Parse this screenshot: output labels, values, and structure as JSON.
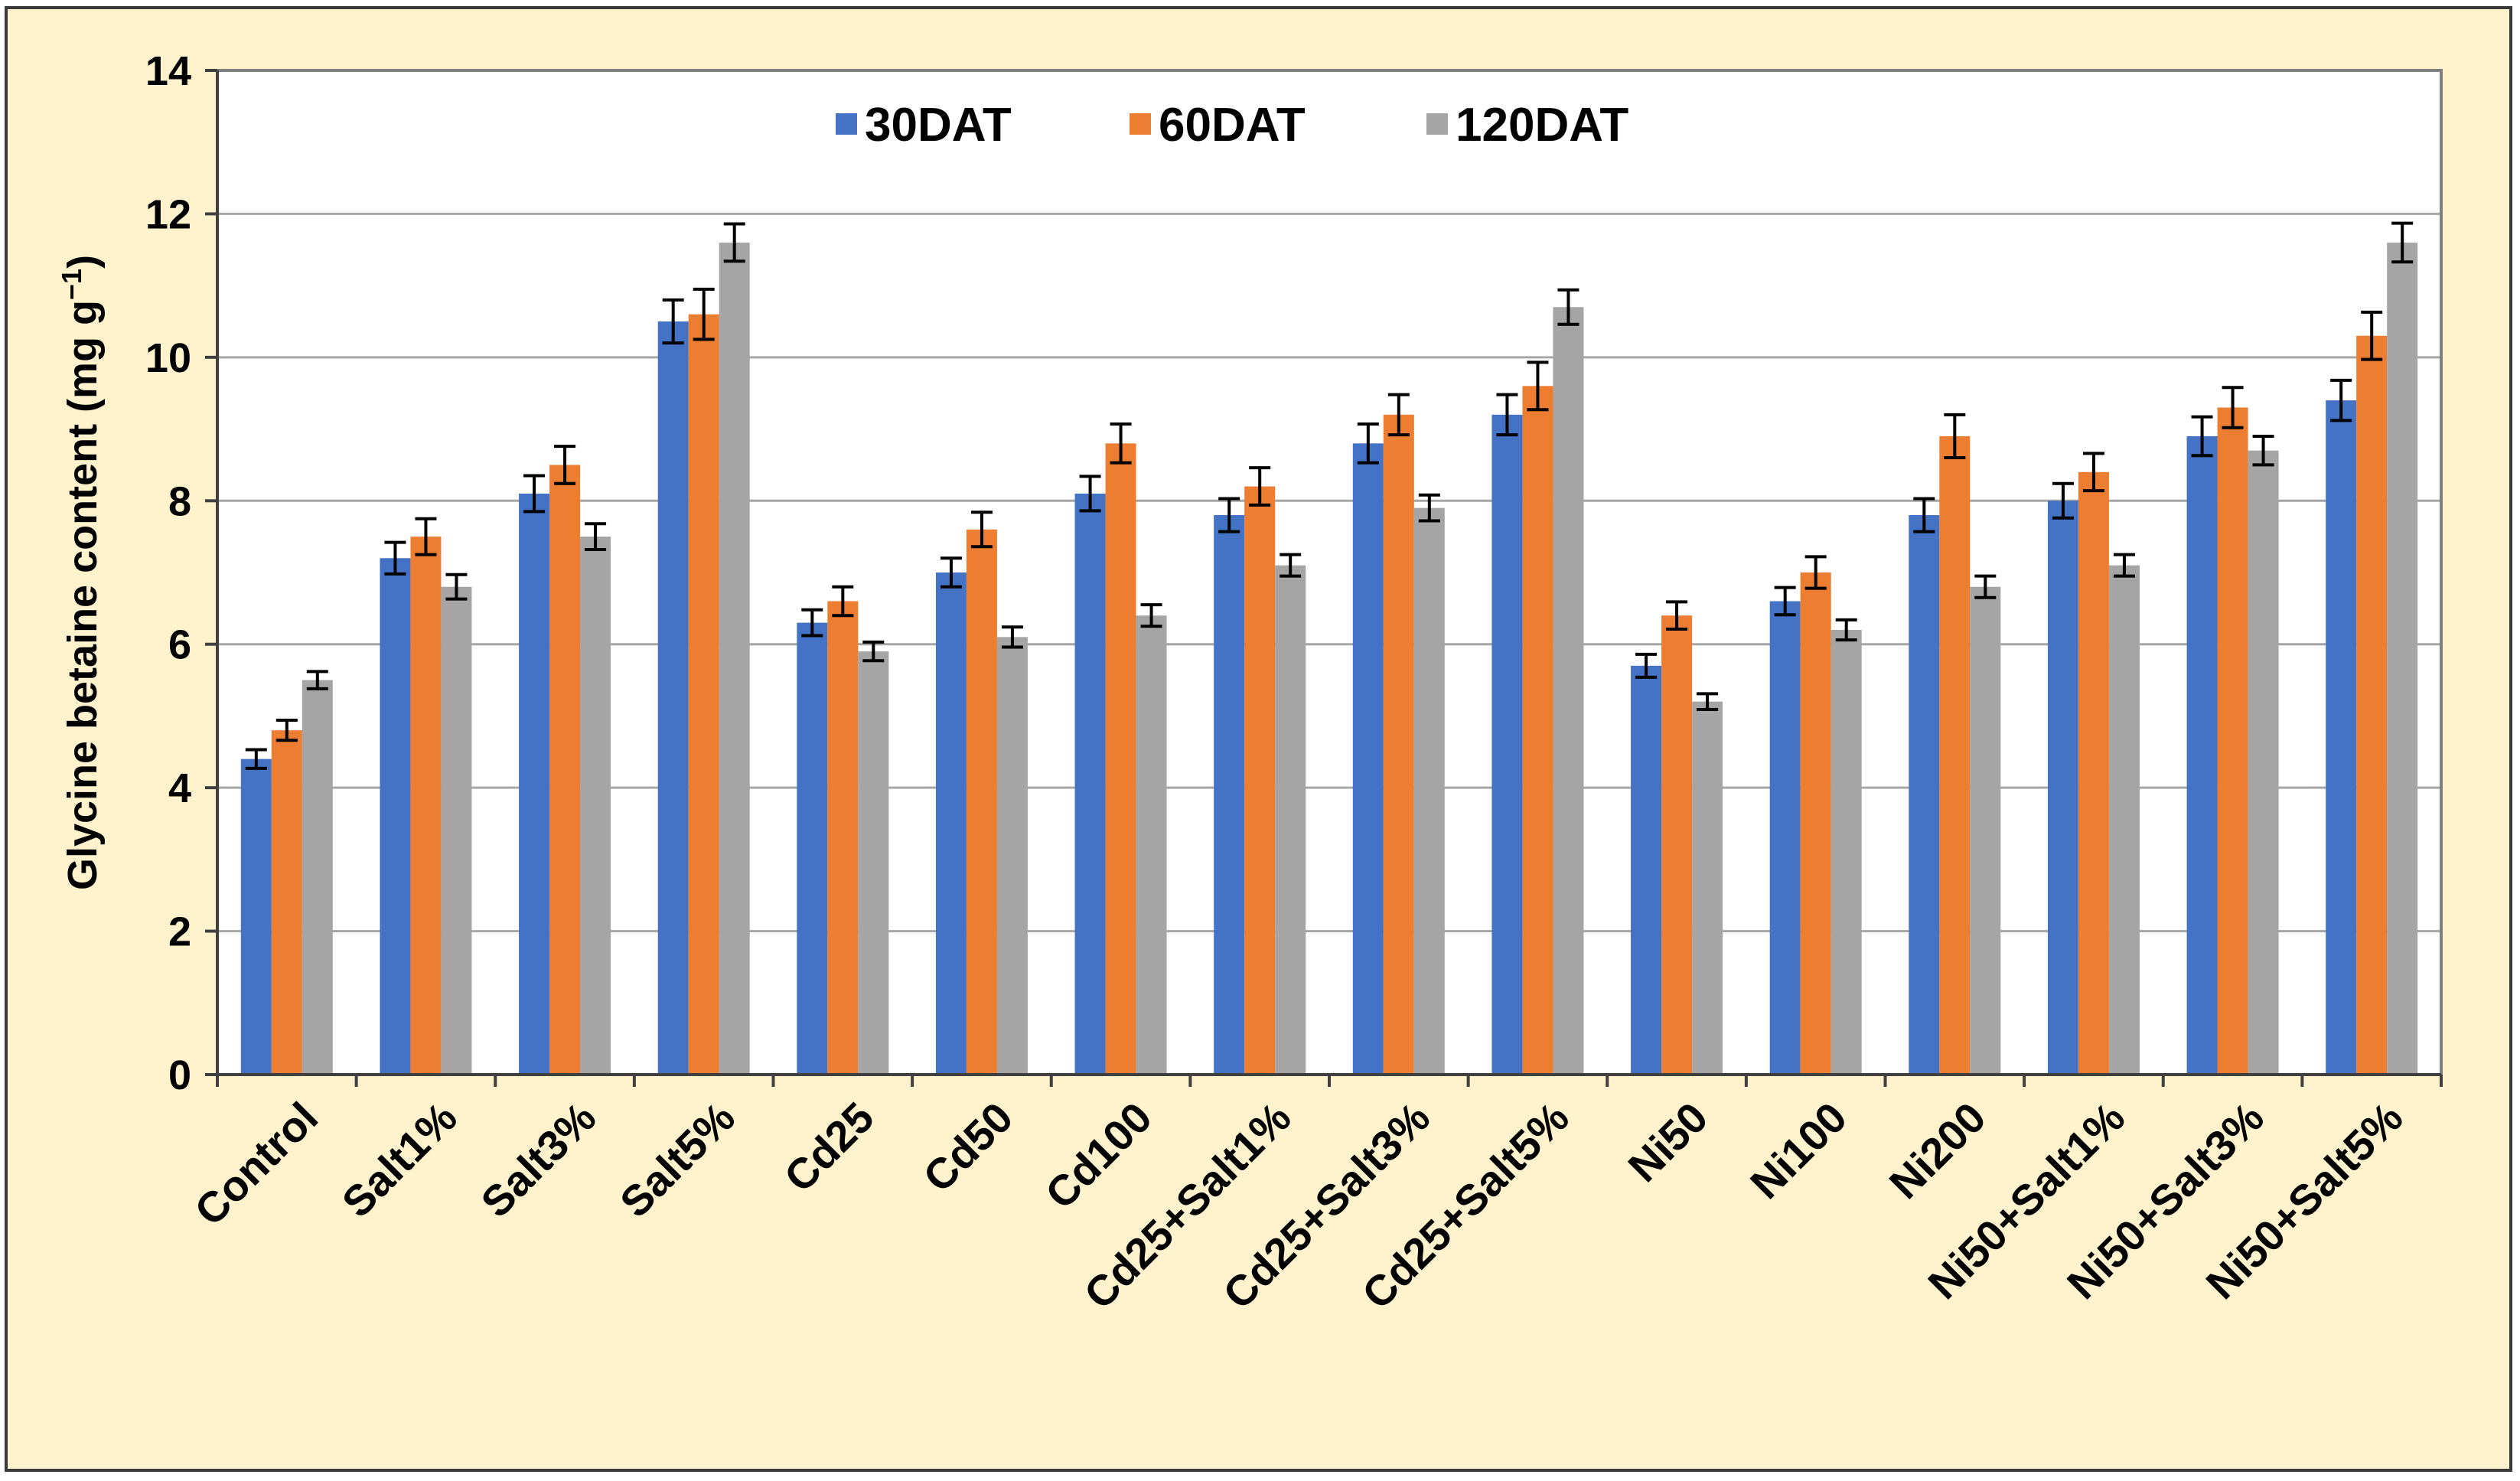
{
  "chart_data": {
    "type": "bar",
    "title": "",
    "xlabel": "",
    "ylabel": "Glycine betaine content (mg g",
    "ylabel_sup": "−1",
    "ylabel_close": ")",
    "ylim": [
      0,
      14
    ],
    "yticks": [
      "0",
      "2",
      "4",
      "6",
      "8",
      "10",
      "12",
      "14"
    ],
    "grid": true,
    "legend_position": "top-center",
    "categories": [
      "Control",
      "Salt1%",
      "Salt3%",
      "Salt5%",
      "Cd25",
      "Cd50",
      "Cd100",
      "Cd25+Salt1%",
      "Cd25+Salt3%",
      "Cd25+Salt5%",
      "Ni50",
      "Ni100",
      "Ni200",
      "Ni50+Salt1%",
      "Ni50+Salt3%",
      "Ni50+Salt5%"
    ],
    "series": [
      {
        "name": "30DAT",
        "color": "#4472c4",
        "values": [
          4.4,
          7.2,
          8.1,
          10.5,
          6.3,
          7.0,
          8.1,
          7.8,
          8.8,
          9.2,
          5.7,
          6.6,
          7.8,
          8.0,
          8.9,
          9.4
        ],
        "errors": [
          0.13,
          0.22,
          0.25,
          0.3,
          0.18,
          0.2,
          0.24,
          0.23,
          0.27,
          0.28,
          0.16,
          0.19,
          0.23,
          0.24,
          0.27,
          0.28
        ]
      },
      {
        "name": "60DAT",
        "color": "#ed7d31",
        "values": [
          4.8,
          7.5,
          8.5,
          10.6,
          6.6,
          7.6,
          8.8,
          8.2,
          9.2,
          9.6,
          6.4,
          7.0,
          8.9,
          8.4,
          9.3,
          10.3
        ],
        "errors": [
          0.14,
          0.25,
          0.26,
          0.35,
          0.2,
          0.24,
          0.27,
          0.26,
          0.28,
          0.33,
          0.19,
          0.22,
          0.3,
          0.26,
          0.28,
          0.33
        ]
      },
      {
        "name": "120DAT",
        "color": "#a5a5a5",
        "values": [
          5.5,
          6.8,
          7.5,
          11.6,
          5.9,
          6.1,
          6.4,
          7.1,
          7.9,
          10.7,
          5.2,
          6.2,
          6.8,
          7.1,
          8.7,
          11.6
        ],
        "errors": [
          0.12,
          0.17,
          0.18,
          0.26,
          0.13,
          0.14,
          0.15,
          0.15,
          0.18,
          0.24,
          0.11,
          0.14,
          0.15,
          0.15,
          0.2,
          0.27
        ]
      }
    ]
  }
}
